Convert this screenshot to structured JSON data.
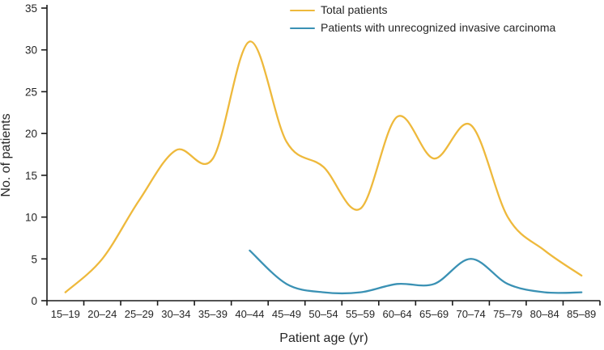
{
  "chart_data": {
    "type": "line",
    "title": "",
    "xlabel": "Patient age (yr)",
    "ylabel": "No. of patients",
    "categories": [
      "15–19",
      "20–24",
      "25–29",
      "30–34",
      "35–39",
      "40–44",
      "45–49",
      "50–54",
      "55–59",
      "60–64",
      "65–69",
      "70–74",
      "75–79",
      "80–84",
      "85–89"
    ],
    "ylim": [
      0,
      35
    ],
    "yticks": [
      0,
      5,
      10,
      15,
      20,
      25,
      30,
      35
    ],
    "grid": false,
    "legend_position": "top-center",
    "curve_style": "smoothed spline, no markers",
    "series": [
      {
        "name": "Total patients",
        "color": "#EEB93C",
        "start_index": 0,
        "values": [
          1,
          5,
          12,
          18,
          17,
          31,
          19,
          16,
          11,
          22,
          17,
          21,
          10,
          6,
          3
        ]
      },
      {
        "name": "Patients with unrecognized invasive carcinoma",
        "color": "#3A91B4",
        "start_index": 5,
        "values": [
          6,
          2,
          1,
          1,
          2,
          2,
          5,
          2,
          1,
          1
        ]
      }
    ]
  },
  "colors": {
    "axis": "#1a1a1a",
    "text": "#262626",
    "background": "#ffffff"
  }
}
